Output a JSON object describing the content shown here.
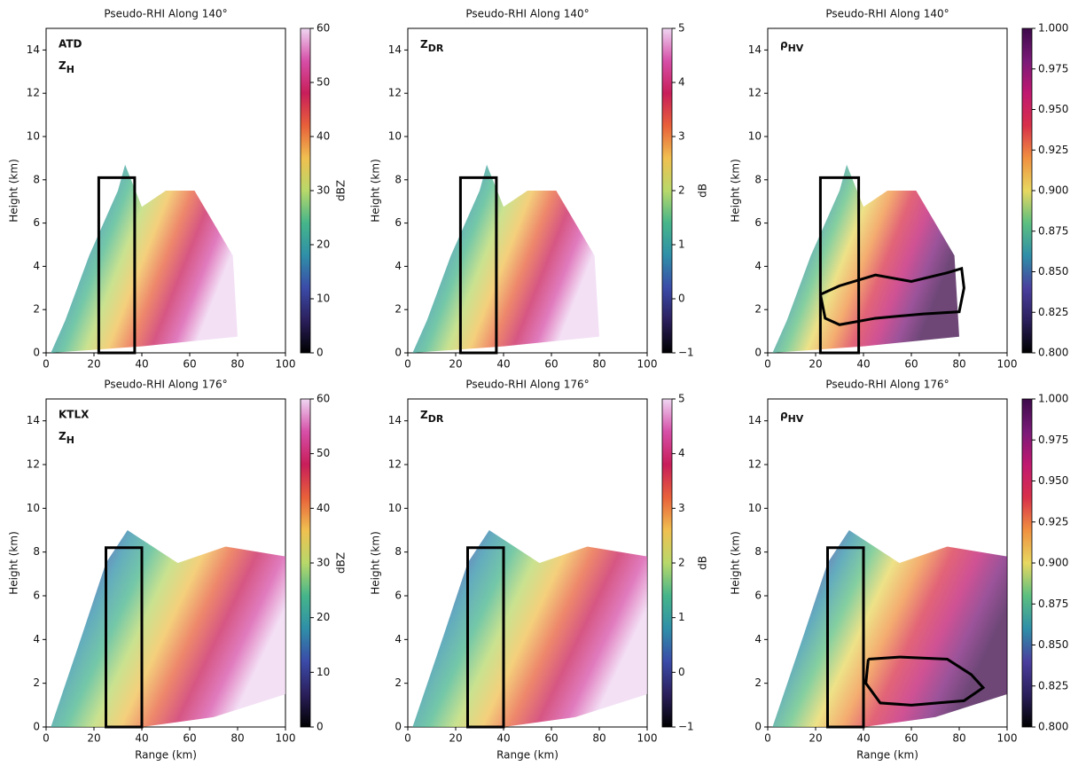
{
  "chart_data": [
    {
      "type": "pseudo-rhi",
      "title": "Pseudo-RHI Along 140°",
      "radar": "ATD",
      "variable": "Z",
      "variable_sub": "H",
      "ylabel": "Height (km)",
      "xlim": [
        0,
        100
      ],
      "xticks": [
        0,
        20,
        40,
        60,
        80,
        100
      ],
      "ylim": [
        0,
        15
      ],
      "yticks": [
        0,
        2,
        4,
        6,
        8,
        10,
        12,
        14
      ],
      "clim": [
        0,
        60
      ],
      "cticks": [
        0,
        10,
        20,
        30,
        40,
        50,
        60
      ],
      "clabel": "dBZ",
      "colormap": [
        "#000000",
        "#2b1f5c",
        "#3b4ba8",
        "#2f8fa8",
        "#46b58a",
        "#b8d86a",
        "#f0c050",
        "#e8603a",
        "#c81e5a",
        "#d64fa8",
        "#efd6f2"
      ],
      "box": {
        "x": [
          22,
          37
        ],
        "y": [
          0,
          8.1
        ]
      }
    },
    {
      "type": "pseudo-rhi",
      "title": "Pseudo-RHI Along 140°",
      "variable": "Z",
      "variable_sub": "DR",
      "ylabel": "Height (km)",
      "xlim": [
        0,
        100
      ],
      "xticks": [
        0,
        20,
        40,
        60,
        80,
        100
      ],
      "ylim": [
        0,
        15
      ],
      "yticks": [
        0,
        2,
        4,
        6,
        8,
        10,
        12,
        14
      ],
      "clim": [
        -1,
        5
      ],
      "cticks": [
        {
          "value": -1,
          "label": "−1"
        },
        0,
        1,
        2,
        3,
        4,
        5
      ],
      "clabel": "dB",
      "colormap": [
        "#000000",
        "#2b1f5c",
        "#3b4ba8",
        "#2f8fa8",
        "#46b58a",
        "#b8d86a",
        "#f0c050",
        "#e8603a",
        "#c81e5a",
        "#d64fa8",
        "#efd6f2"
      ],
      "box": {
        "x": [
          22,
          37
        ],
        "y": [
          0,
          8.1
        ]
      }
    },
    {
      "type": "pseudo-rhi",
      "title": "Pseudo-RHI Along 140°",
      "variable": "ρ",
      "variable_sub": "HV",
      "ylabel": "Height (km)",
      "xlim": [
        0,
        100
      ],
      "xticks": [
        0,
        20,
        40,
        60,
        80,
        100
      ],
      "ylim": [
        0,
        15
      ],
      "yticks": [
        0,
        2,
        4,
        6,
        8,
        10,
        12,
        14
      ],
      "clim": [
        0.8,
        1.0
      ],
      "cticks": [
        {
          "value": 0.8,
          "label": "0.800"
        },
        {
          "value": 0.825,
          "label": "0.825"
        },
        {
          "value": 0.85,
          "label": "0.850"
        },
        {
          "value": 0.875,
          "label": "0.875"
        },
        {
          "value": 0.9,
          "label": "0.900"
        },
        {
          "value": 0.925,
          "label": "0.925"
        },
        {
          "value": 0.95,
          "label": "0.950"
        },
        {
          "value": 0.975,
          "label": "0.975"
        },
        {
          "value": 1.0,
          "label": "1.000"
        }
      ],
      "colormap": [
        "#000000",
        "#2b1f5c",
        "#4a3f9e",
        "#2f8fa8",
        "#5cbf80",
        "#e8d860",
        "#f09040",
        "#d8304a",
        "#c01870",
        "#7a1a78",
        "#3d0a4a"
      ],
      "box": {
        "x": [
          22,
          38
        ],
        "y": [
          0,
          8.1
        ]
      },
      "outline": {
        "x": [
          22,
          30,
          45,
          60,
          75,
          81,
          82,
          80,
          65,
          45,
          30,
          24,
          22
        ],
        "y": [
          2.7,
          3.1,
          3.6,
          3.3,
          3.7,
          3.9,
          3.0,
          1.9,
          1.8,
          1.6,
          1.3,
          1.6,
          2.7
        ]
      }
    },
    {
      "type": "pseudo-rhi",
      "title": "Pseudo-RHI Along 176°",
      "radar": "KTLX",
      "variable": "Z",
      "variable_sub": "H",
      "xlabel": "Range (km)",
      "ylabel": "Height (km)",
      "xlim": [
        0,
        100
      ],
      "xticks": [
        0,
        20,
        40,
        60,
        80,
        100
      ],
      "ylim": [
        0,
        15
      ],
      "yticks": [
        0,
        2,
        4,
        6,
        8,
        10,
        12,
        14
      ],
      "clim": [
        0,
        60
      ],
      "cticks": [
        0,
        10,
        20,
        30,
        40,
        50,
        60
      ],
      "clabel": "dBZ",
      "colormap": [
        "#000000",
        "#2b1f5c",
        "#3b4ba8",
        "#2f8fa8",
        "#46b58a",
        "#b8d86a",
        "#f0c050",
        "#e8603a",
        "#c81e5a",
        "#d64fa8",
        "#efd6f2"
      ],
      "box": {
        "x": [
          25,
          40
        ],
        "y": [
          0,
          8.2
        ]
      }
    },
    {
      "type": "pseudo-rhi",
      "title": "Pseudo-RHI Along 176°",
      "variable": "Z",
      "variable_sub": "DR",
      "xlabel": "Range (km)",
      "ylabel": "Height (km)",
      "xlim": [
        0,
        100
      ],
      "xticks": [
        0,
        20,
        40,
        60,
        80,
        100
      ],
      "ylim": [
        0,
        15
      ],
      "yticks": [
        0,
        2,
        4,
        6,
        8,
        10,
        12,
        14
      ],
      "clim": [
        -1,
        5
      ],
      "cticks": [
        {
          "value": -1,
          "label": "−1"
        },
        0,
        1,
        2,
        3,
        4,
        5
      ],
      "clabel": "dB",
      "colormap": [
        "#000000",
        "#2b1f5c",
        "#3b4ba8",
        "#2f8fa8",
        "#46b58a",
        "#b8d86a",
        "#f0c050",
        "#e8603a",
        "#c81e5a",
        "#d64fa8",
        "#efd6f2"
      ],
      "box": {
        "x": [
          25,
          40
        ],
        "y": [
          0,
          8.2
        ]
      }
    },
    {
      "type": "pseudo-rhi",
      "title": "Pseudo-RHI Along 176°",
      "variable": "ρ",
      "variable_sub": "HV",
      "xlabel": "Range (km)",
      "ylabel": "Height (km)",
      "xlim": [
        0,
        100
      ],
      "xticks": [
        0,
        20,
        40,
        60,
        80,
        100
      ],
      "ylim": [
        0,
        15
      ],
      "yticks": [
        0,
        2,
        4,
        6,
        8,
        10,
        12,
        14
      ],
      "clim": [
        0.8,
        1.0
      ],
      "cticks": [
        {
          "value": 0.8,
          "label": "0.800"
        },
        {
          "value": 0.825,
          "label": "0.825"
        },
        {
          "value": 0.85,
          "label": "0.850"
        },
        {
          "value": 0.875,
          "label": "0.875"
        },
        {
          "value": 0.9,
          "label": "0.900"
        },
        {
          "value": 0.925,
          "label": "0.925"
        },
        {
          "value": 0.95,
          "label": "0.950"
        },
        {
          "value": 0.975,
          "label": "0.975"
        },
        {
          "value": 1.0,
          "label": "1.000"
        }
      ],
      "colormap": [
        "#000000",
        "#2b1f5c",
        "#4a3f9e",
        "#2f8fa8",
        "#5cbf80",
        "#e8d860",
        "#f09040",
        "#d8304a",
        "#c01870",
        "#7a1a78",
        "#3d0a4a"
      ],
      "box": {
        "x": [
          25,
          40
        ],
        "y": [
          0,
          8.2
        ]
      },
      "outline": {
        "x": [
          42,
          55,
          75,
          85,
          90,
          82,
          60,
          47,
          41,
          42
        ],
        "y": [
          3.1,
          3.2,
          3.1,
          2.4,
          1.8,
          1.2,
          1.0,
          1.1,
          2.0,
          3.1
        ]
      }
    }
  ]
}
